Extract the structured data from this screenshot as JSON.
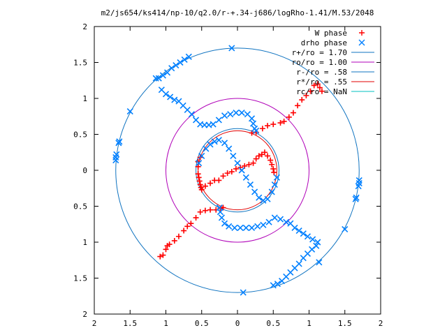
{
  "chart_data": {
    "type": "scatter",
    "title": "m2/js654/ks414/np-10/q2.0/r-+.34-j686/logRho-1.41/M.53/2048",
    "xlabel": "",
    "ylabel": "",
    "xlim": [
      -2,
      2
    ],
    "ylim": [
      -2,
      2
    ],
    "x_ticks": [
      -2,
      -1.5,
      -1,
      -0.5,
      0,
      0.5,
      1,
      1.5,
      2
    ],
    "y_ticks": [
      -2,
      -1.5,
      -1,
      -0.5,
      0,
      0.5,
      1,
      1.5,
      2
    ],
    "x_tick_labels": [
      "2",
      "1.5",
      "1",
      "0.5",
      "0",
      "0.5",
      "1",
      "1.5",
      "2"
    ],
    "y_tick_labels": [
      "2",
      "1.5",
      "1",
      "0.5",
      "0",
      "0.5",
      "1",
      "1.5",
      "2"
    ],
    "grid": false,
    "legend_position": "top-right",
    "series": [
      {
        "name": "W phase",
        "marker": "+",
        "color": "#ff0000",
        "points": [
          [
            -1.08,
            -1.2
          ],
          [
            -1.04,
            -1.18
          ],
          [
            -1.0,
            -1.1
          ],
          [
            -0.98,
            -1.05
          ],
          [
            -0.95,
            -1.03
          ],
          [
            -0.88,
            -0.98
          ],
          [
            -0.82,
            -0.92
          ],
          [
            -0.75,
            -0.84
          ],
          [
            -0.7,
            -0.78
          ],
          [
            -0.65,
            -0.74
          ],
          [
            -0.58,
            -0.66
          ],
          [
            -0.52,
            -0.58
          ],
          [
            -0.45,
            -0.56
          ],
          [
            -0.38,
            -0.55
          ],
          [
            -0.3,
            -0.55
          ],
          [
            -0.24,
            -0.53
          ],
          [
            -0.2,
            -0.52
          ],
          [
            0.2,
            0.52
          ],
          [
            0.26,
            0.53
          ],
          [
            0.35,
            0.58
          ],
          [
            0.42,
            0.62
          ],
          [
            0.5,
            0.64
          ],
          [
            0.6,
            0.66
          ],
          [
            0.65,
            0.68
          ],
          [
            0.72,
            0.74
          ],
          [
            0.78,
            0.8
          ],
          [
            0.84,
            0.9
          ],
          [
            0.9,
            0.98
          ],
          [
            0.96,
            1.04
          ],
          [
            1.02,
            1.1
          ],
          [
            1.07,
            1.18
          ],
          [
            1.12,
            1.2
          ],
          [
            1.15,
            1.15
          ],
          [
            1.18,
            1.1
          ],
          [
            -0.55,
            -0.05
          ],
          [
            -0.54,
            -0.1
          ],
          [
            -0.53,
            -0.15
          ],
          [
            -0.52,
            -0.2
          ],
          [
            -0.51,
            -0.24
          ],
          [
            -0.5,
            -0.27
          ],
          [
            -0.55,
            0.05
          ],
          [
            -0.55,
            0.12
          ],
          [
            -0.52,
            0.18
          ],
          [
            -0.45,
            -0.22
          ],
          [
            -0.38,
            -0.18
          ],
          [
            -0.32,
            -0.14
          ],
          [
            -0.26,
            -0.14
          ],
          [
            -0.2,
            -0.08
          ],
          [
            -0.14,
            -0.04
          ],
          [
            -0.08,
            -0.02
          ],
          [
            -0.02,
            0.02
          ],
          [
            0.04,
            0.04
          ],
          [
            0.1,
            0.06
          ],
          [
            0.16,
            0.08
          ],
          [
            0.22,
            0.1
          ],
          [
            0.26,
            0.16
          ],
          [
            0.3,
            0.2
          ],
          [
            0.34,
            0.22
          ],
          [
            0.38,
            0.25
          ],
          [
            0.42,
            0.2
          ],
          [
            0.46,
            0.14
          ],
          [
            0.48,
            0.08
          ],
          [
            0.5,
            0.02
          ],
          [
            0.51,
            -0.03
          ]
        ]
      },
      {
        "name": "drho phase",
        "marker": "x",
        "color": "#0080ff",
        "points": [
          [
            -1.1,
            1.28
          ],
          [
            -1.04,
            1.32
          ],
          [
            -0.98,
            1.36
          ],
          [
            -0.92,
            1.42
          ],
          [
            -0.86,
            1.46
          ],
          [
            -0.8,
            1.5
          ],
          [
            -0.74,
            1.54
          ],
          [
            -0.68,
            1.58
          ],
          [
            -1.06,
            1.12
          ],
          [
            -1.0,
            1.06
          ],
          [
            -0.94,
            1.02
          ],
          [
            -0.88,
            0.98
          ],
          [
            -0.82,
            0.96
          ],
          [
            -0.76,
            0.9
          ],
          [
            -0.7,
            0.84
          ],
          [
            -0.64,
            0.78
          ],
          [
            -0.58,
            0.7
          ],
          [
            -0.52,
            0.64
          ],
          [
            -0.46,
            0.63
          ],
          [
            -0.4,
            0.63
          ],
          [
            -0.34,
            0.64
          ],
          [
            -0.26,
            0.7
          ],
          [
            -0.18,
            0.76
          ],
          [
            -0.1,
            0.78
          ],
          [
            -0.02,
            0.8
          ],
          [
            0.06,
            0.8
          ],
          [
            0.14,
            0.78
          ],
          [
            0.2,
            0.72
          ],
          [
            0.22,
            0.65
          ],
          [
            0.24,
            0.58
          ],
          [
            0.26,
            0.55
          ],
          [
            1.1,
            -1.05
          ],
          [
            1.04,
            -1.1
          ],
          [
            0.98,
            -1.16
          ],
          [
            0.92,
            -1.22
          ],
          [
            0.86,
            -1.3
          ],
          [
            0.8,
            -1.36
          ],
          [
            0.74,
            -1.42
          ],
          [
            0.68,
            -1.48
          ],
          [
            0.62,
            -1.54
          ],
          [
            0.56,
            -1.58
          ],
          [
            0.5,
            -1.6
          ],
          [
            1.12,
            -1.0
          ],
          [
            1.05,
            -0.96
          ],
          [
            0.98,
            -0.92
          ],
          [
            0.92,
            -0.88
          ],
          [
            0.86,
            -0.84
          ],
          [
            0.8,
            -0.8
          ],
          [
            0.74,
            -0.74
          ],
          [
            0.68,
            -0.72
          ],
          [
            0.6,
            -0.68
          ],
          [
            0.52,
            -0.66
          ],
          [
            0.44,
            -0.72
          ],
          [
            0.36,
            -0.76
          ],
          [
            0.28,
            -0.78
          ],
          [
            0.2,
            -0.8
          ],
          [
            0.12,
            -0.8
          ],
          [
            0.04,
            -0.8
          ],
          [
            -0.04,
            -0.8
          ],
          [
            -0.12,
            -0.78
          ],
          [
            -0.18,
            -0.74
          ],
          [
            -0.22,
            -0.66
          ],
          [
            -0.24,
            -0.58
          ],
          [
            -0.25,
            -0.52
          ],
          [
            -0.54,
            0.1
          ],
          [
            -0.5,
            0.2
          ],
          [
            -0.44,
            0.3
          ],
          [
            -0.38,
            0.36
          ],
          [
            -0.32,
            0.4
          ],
          [
            -0.26,
            0.42
          ],
          [
            -0.18,
            0.38
          ],
          [
            -0.12,
            0.3
          ],
          [
            -0.06,
            0.2
          ],
          [
            0.0,
            0.1
          ],
          [
            0.06,
            0.0
          ],
          [
            0.12,
            -0.1
          ],
          [
            0.18,
            -0.2
          ],
          [
            0.24,
            -0.3
          ],
          [
            0.3,
            -0.38
          ],
          [
            0.36,
            -0.42
          ],
          [
            0.42,
            -0.4
          ],
          [
            0.48,
            -0.3
          ],
          [
            0.52,
            -0.2
          ],
          [
            0.55,
            -0.1
          ],
          [
            -1.7,
            0.14
          ],
          [
            -1.7,
            0.18
          ],
          [
            -1.69,
            0.22
          ],
          [
            -1.66,
            0.38
          ],
          [
            -1.65,
            0.4
          ],
          [
            -1.5,
            0.82
          ],
          [
            -1.14,
            1.28
          ],
          [
            -0.08,
            1.7
          ],
          [
            1.7,
            -0.14
          ],
          [
            1.7,
            -0.18
          ],
          [
            1.69,
            -0.22
          ],
          [
            1.66,
            -0.38
          ],
          [
            1.65,
            -0.4
          ],
          [
            1.5,
            -0.82
          ],
          [
            1.14,
            -1.28
          ],
          [
            0.08,
            -1.7
          ]
        ]
      },
      {
        "name": "r+/ro = 1.70",
        "type": "circle",
        "radius": 1.7,
        "color": "#0f73c0"
      },
      {
        "name": "ro/ro = 1.00",
        "type": "circle",
        "radius": 1.0,
        "color": "#b000b8"
      },
      {
        "name": "r-/ro = .58",
        "type": "circle",
        "radius": 0.58,
        "color": "#0f73c0"
      },
      {
        "name": "r*/ro = .55",
        "type": "circle",
        "radius": 0.55,
        "color": "#e00000"
      },
      {
        "name": "rc/ro = NaN",
        "type": "circle",
        "radius": null,
        "color": "#00c0c0"
      }
    ]
  }
}
